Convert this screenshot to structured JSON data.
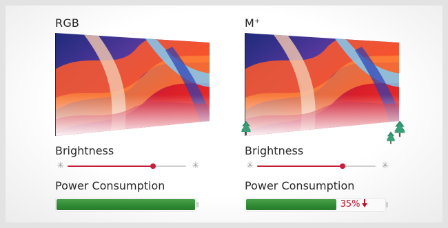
{
  "panels": [
    {
      "id": "rgb",
      "title": "RGB",
      "brightness_label": "Brightness",
      "brightness_level": 0.72,
      "power_label": "Power Consumption",
      "power_level": 1.0,
      "power_saving_text": "",
      "trees": false
    },
    {
      "id": "mplus",
      "title": "M⁺",
      "brightness_label": "Brightness",
      "brightness_level": 0.72,
      "power_label": "Power Consumption",
      "power_level": 0.65,
      "power_saving_text": "35%",
      "trees": true
    }
  ],
  "icons": {
    "brightness_min": "sun-small-icon",
    "brightness_max": "sun-large-icon",
    "saving_arrow": "arrow-down-icon",
    "eco": "tree-icon"
  },
  "colors": {
    "accent": "#c41f3b",
    "battery_green": "#2f8a33",
    "saving_text": "#b5122d"
  }
}
